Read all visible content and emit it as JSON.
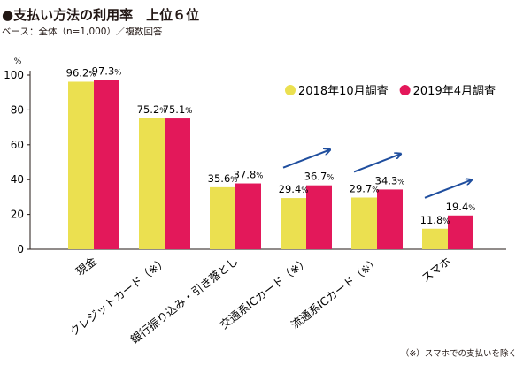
{
  "title": "●支払い方法の利用率　上位６位",
  "subtitle": "ベース：全体（n=1,000）／複数回答",
  "footnote": "（※）スマホでの支払いを除く",
  "chart_data": {
    "type": "bar",
    "ylabel": "%",
    "ylim": [
      0,
      100
    ],
    "yticks": [
      0,
      20,
      40,
      60,
      80,
      100
    ],
    "grid": false,
    "legend_position": "top-right",
    "categories": [
      "現金",
      "クレジットカード（※）",
      "銀行振り込み・引き落とし",
      "交通系ICカード（※）",
      "流通系ICカード（※）",
      "スマホ"
    ],
    "series": [
      {
        "name": "2018年10月調査",
        "color": "#ebe050",
        "values": [
          96.2,
          75.2,
          35.6,
          29.4,
          29.7,
          11.8
        ],
        "labels": [
          "96.2",
          "75.2",
          "35.6",
          "29.4",
          "29.7",
          "11.8"
        ]
      },
      {
        "name": "2019年4月調査",
        "color": "#e3185a",
        "values": [
          97.3,
          75.1,
          37.8,
          36.7,
          34.3,
          19.4
        ],
        "labels": [
          "97.3",
          "75.1",
          "37.8",
          "36.7",
          "34.3",
          "19.4"
        ]
      }
    ],
    "value_unit": "%",
    "growth_arrows": [
      "交通系ICカード（※）",
      "流通系ICカード（※）",
      "スマホ"
    ],
    "arrow_color": "#1f4e9e"
  }
}
